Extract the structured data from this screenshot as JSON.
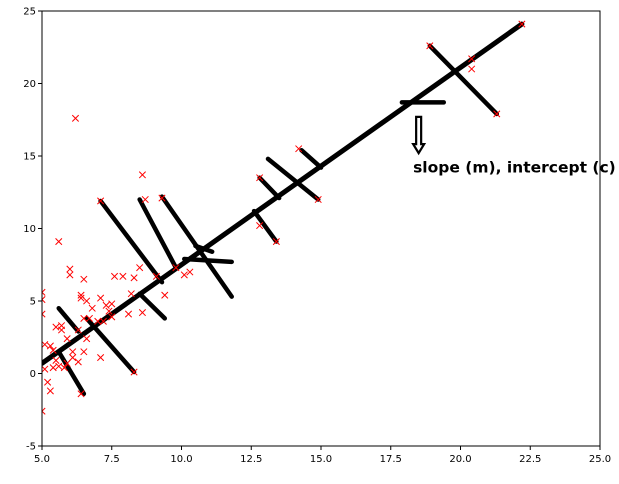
{
  "chart_data": {
    "type": "scatter",
    "xlim": [
      5.0,
      25.0
    ],
    "ylim": [
      -5,
      25
    ],
    "x_ticks": [
      5.0,
      7.5,
      10.0,
      12.5,
      15.0,
      17.5,
      20.0,
      22.5,
      25.0
    ],
    "y_ticks": [
      -5,
      0,
      5,
      10,
      15,
      20,
      25
    ],
    "x_tick_labels": [
      "5.0",
      "7.5",
      "10.0",
      "12.5",
      "15.0",
      "17.5",
      "20.0",
      "22.5",
      "25.0"
    ],
    "y_tick_labels": [
      "-5",
      "0",
      "5",
      "10",
      "15",
      "20",
      "25"
    ],
    "grid": false,
    "points": {
      "marker": "x",
      "color": "#ff0000",
      "data": [
        [
          5.0,
          -2.6
        ],
        [
          5.0,
          4.1
        ],
        [
          5.0,
          5.6
        ],
        [
          5.0,
          5.1
        ],
        [
          5.1,
          0.3
        ],
        [
          5.1,
          2.0
        ],
        [
          5.2,
          -0.6
        ],
        [
          5.3,
          -1.2
        ],
        [
          5.3,
          1.9
        ],
        [
          5.4,
          0.4
        ],
        [
          5.4,
          1.6
        ],
        [
          5.5,
          0.9
        ],
        [
          5.5,
          3.2
        ],
        [
          5.6,
          9.1
        ],
        [
          5.6,
          0.5
        ],
        [
          5.7,
          3.0
        ],
        [
          5.7,
          3.3
        ],
        [
          5.8,
          0.4
        ],
        [
          5.9,
          0.7
        ],
        [
          5.9,
          2.4
        ],
        [
          6.0,
          6.8
        ],
        [
          6.0,
          7.2
        ],
        [
          6.1,
          1.1
        ],
        [
          6.1,
          1.5
        ],
        [
          6.2,
          17.6
        ],
        [
          6.3,
          3.0
        ],
        [
          6.3,
          0.8
        ],
        [
          6.4,
          5.2
        ],
        [
          6.4,
          5.4
        ],
        [
          6.5,
          6.5
        ],
        [
          6.5,
          3.8
        ],
        [
          6.6,
          2.4
        ],
        [
          6.4,
          -1.4
        ],
        [
          6.5,
          1.5
        ],
        [
          6.6,
          5.0
        ],
        [
          6.7,
          3.8
        ],
        [
          6.8,
          4.5
        ],
        [
          7.0,
          3.6
        ],
        [
          7.1,
          1.1
        ],
        [
          7.1,
          5.2
        ],
        [
          7.2,
          3.6
        ],
        [
          7.3,
          4.7
        ],
        [
          7.4,
          4.3
        ],
        [
          7.5,
          4.8
        ],
        [
          7.5,
          3.9
        ],
        [
          7.6,
          6.7
        ],
        [
          7.9,
          6.7
        ],
        [
          8.1,
          4.1
        ],
        [
          8.2,
          5.5
        ],
        [
          8.3,
          6.6
        ],
        [
          8.5,
          7.3
        ],
        [
          8.6,
          4.2
        ],
        [
          8.6,
          13.7
        ],
        [
          8.7,
          12.0
        ],
        [
          9.1,
          6.7
        ],
        [
          9.3,
          12.1
        ],
        [
          9.4,
          5.4
        ],
        [
          9.8,
          7.3
        ],
        [
          10.1,
          6.8
        ],
        [
          7.1,
          11.9
        ],
        [
          8.3,
          0.1
        ],
        [
          10.3,
          7.0
        ],
        [
          12.8,
          13.5
        ],
        [
          12.8,
          10.2
        ],
        [
          13.4,
          9.1
        ],
        [
          14.2,
          15.5
        ],
        [
          14.9,
          12.0
        ],
        [
          18.9,
          22.6
        ],
        [
          20.4,
          21.7
        ],
        [
          20.4,
          21.0
        ],
        [
          21.3,
          17.9
        ],
        [
          22.2,
          24.1
        ]
      ]
    },
    "fit_line": {
      "start": [
        5.0,
        0.7
      ],
      "end": [
        22.2,
        24.1
      ],
      "color": "#000000"
    },
    "residuals": [
      [
        [
          5.6,
          4.5
        ],
        [
          6.3,
          2.9
        ]
      ],
      [
        [
          5.6,
          1.5
        ],
        [
          6.5,
          -1.4
        ]
      ],
      [
        [
          6.6,
          3.8
        ],
        [
          8.3,
          0.1
        ]
      ],
      [
        [
          7.1,
          11.9
        ],
        [
          9.3,
          6.3
        ]
      ],
      [
        [
          8.5,
          12.0
        ],
        [
          9.8,
          7.3
        ]
      ],
      [
        [
          8.5,
          5.5
        ],
        [
          9.4,
          3.8
        ]
      ],
      [
        [
          9.3,
          12.2
        ],
        [
          11.8,
          5.3
        ]
      ],
      [
        [
          10.1,
          7.9
        ],
        [
          11.8,
          7.7
        ]
      ],
      [
        [
          10.5,
          8.8
        ],
        [
          11.1,
          8.4
        ]
      ],
      [
        [
          12.6,
          11.2
        ],
        [
          13.4,
          9.1
        ]
      ],
      [
        [
          12.8,
          13.5
        ],
        [
          13.5,
          12.1
        ]
      ],
      [
        [
          13.1,
          14.8
        ],
        [
          14.9,
          12.0
        ]
      ],
      [
        [
          14.3,
          15.4
        ],
        [
          15.0,
          14.2
        ]
      ],
      [
        [
          17.9,
          18.7
        ],
        [
          19.4,
          18.7
        ]
      ],
      [
        [
          18.9,
          22.6
        ],
        [
          21.3,
          17.9
        ]
      ]
    ],
    "annotation": {
      "text": "slope (m), intercept (c)",
      "x": 18.3,
      "y": 14.2,
      "arrow_from": [
        18.5,
        17.7
      ],
      "arrow_to": [
        18.5,
        15.2
      ]
    }
  }
}
